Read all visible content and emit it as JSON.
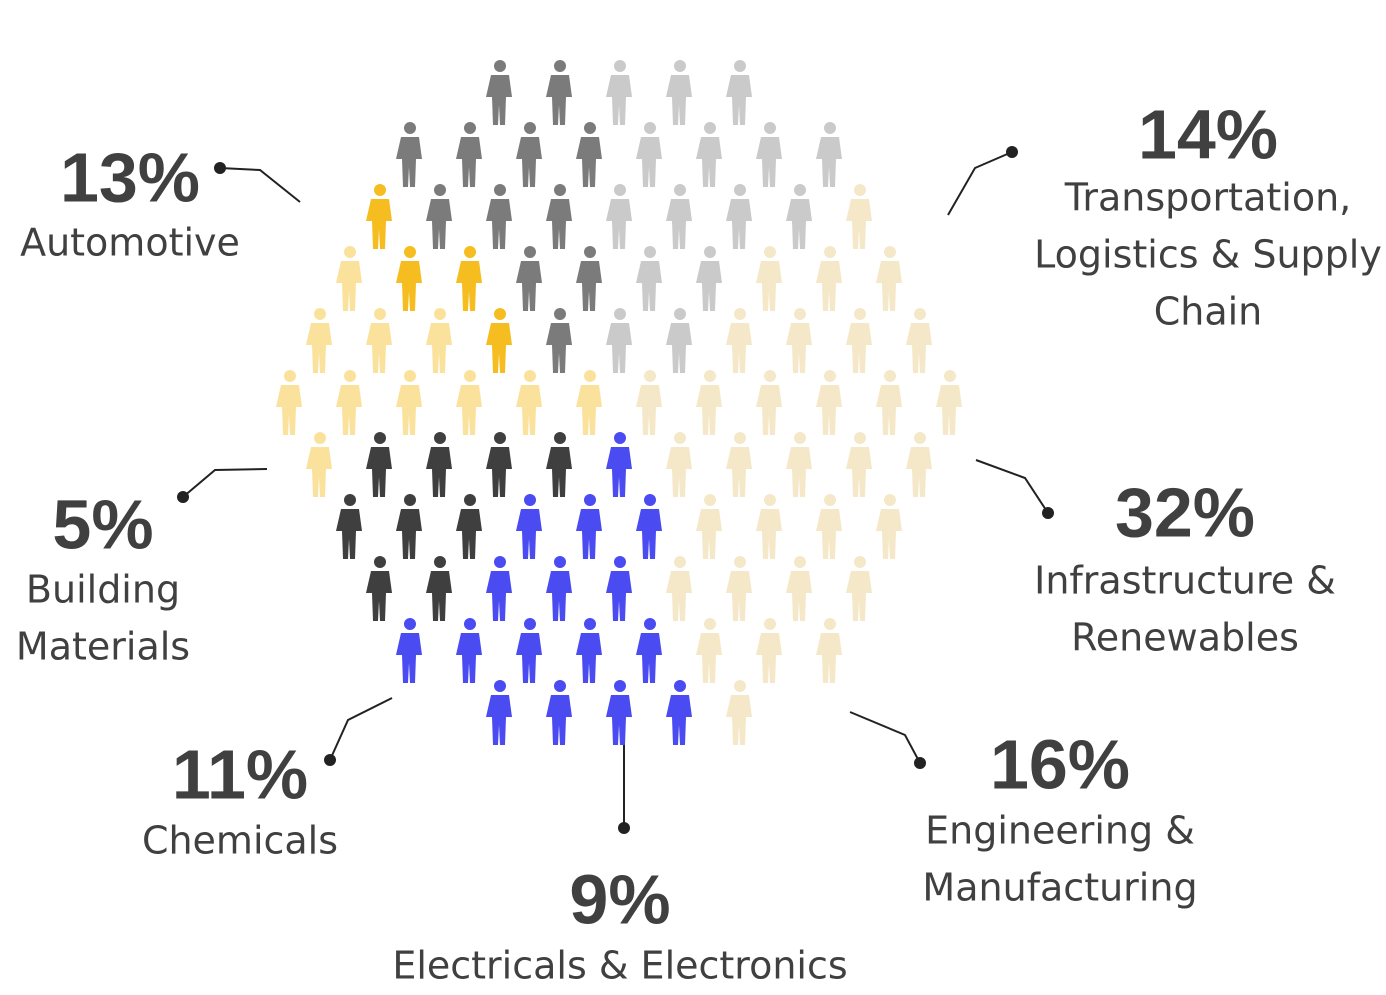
{
  "chart_data": {
    "type": "pictogram",
    "categories": [
      [
        "Transportation,",
        "Logistics & Supply",
        "Chain"
      ],
      [
        "Infrastructure &",
        "Renewables"
      ],
      [
        "Engineering &",
        "Manufacturing"
      ],
      [
        "Electricals & Electronics"
      ],
      [
        "Chemicals"
      ],
      [
        "Building",
        "Materials"
      ],
      [
        "Automotive"
      ]
    ],
    "values": [
      14,
      32,
      16,
      9,
      11,
      5,
      13
    ],
    "value_labels": [
      "14%",
      "32%",
      "16%",
      "9%",
      "11%",
      "5%",
      "13%"
    ],
    "colors": [
      "#cacaca",
      "#f4e8c8",
      "#4b4bf2",
      "#3f3f3f",
      "#fbe29c",
      "#f5bd1f",
      "#7b7b7b"
    ]
  }
}
